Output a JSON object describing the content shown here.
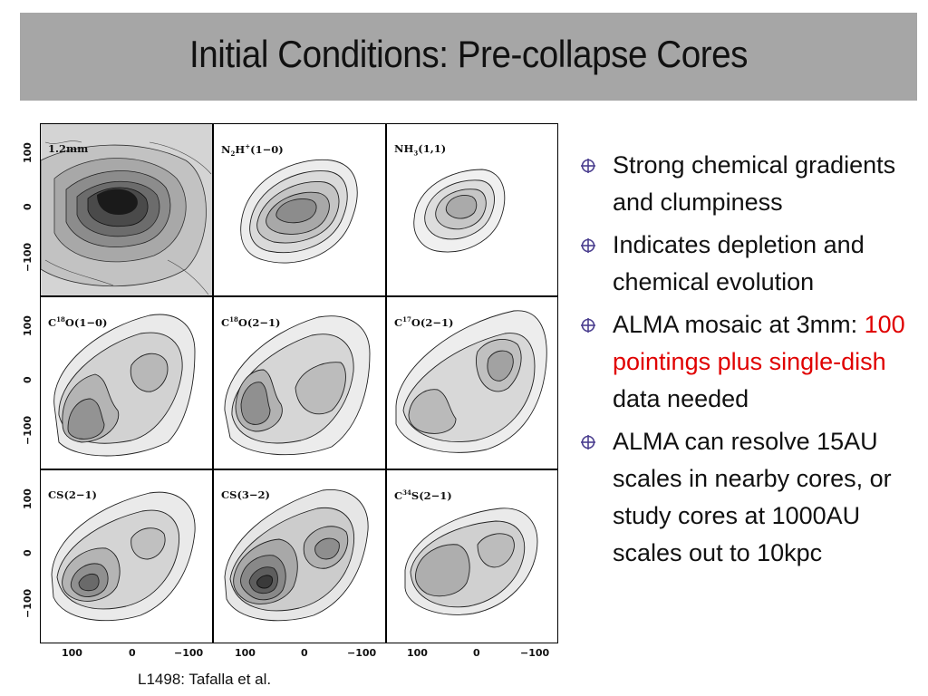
{
  "slide": {
    "title": "Initial Conditions: Pre-collapse Cores",
    "caption": "L1498: Tafalla et al."
  },
  "figure": {
    "panels": [
      {
        "label_main": "1.2mm"
      },
      {
        "label_pre": "N",
        "label_sub": "2",
        "label_mid": "H",
        "label_sup": "+",
        "label_post": "(1−0)"
      },
      {
        "label_pre": "NH",
        "label_sub": "3",
        "label_post": "(1,1)"
      },
      {
        "label_pre": "C",
        "label_sup": "18",
        "label_post": "O(1−0)"
      },
      {
        "label_pre": "C",
        "label_sup": "18",
        "label_post": "O(2−1)"
      },
      {
        "label_pre": "C",
        "label_sup": "17",
        "label_post": "O(2−1)"
      },
      {
        "label_main": "CS(2−1)"
      },
      {
        "label_main": "CS(3−2)"
      },
      {
        "label_pre": "C",
        "label_sup": "34",
        "label_post": "S(2−1)"
      }
    ],
    "y_ticks": [
      "100",
      "0",
      "−100"
    ],
    "x_ticks": [
      "100",
      "0",
      "−100"
    ]
  },
  "bullets": [
    {
      "text": "Strong chemical gradients and clumpiness"
    },
    {
      "text": "Indicates depletion and chemical evolution"
    },
    {
      "text_before": "ALMA mosaic at 3mm: ",
      "text_red": "100 pointings plus single-dish",
      "text_after": " data needed",
      "highlight_color": "#e00000"
    },
    {
      "text": "ALMA can resolve 15AU scales in nearby cores, or study cores at 1000AU scales out to 10kpc"
    }
  ],
  "colors": {
    "title_bar": "#a6a6a6",
    "bullet_icon": "#4b3f8f"
  }
}
